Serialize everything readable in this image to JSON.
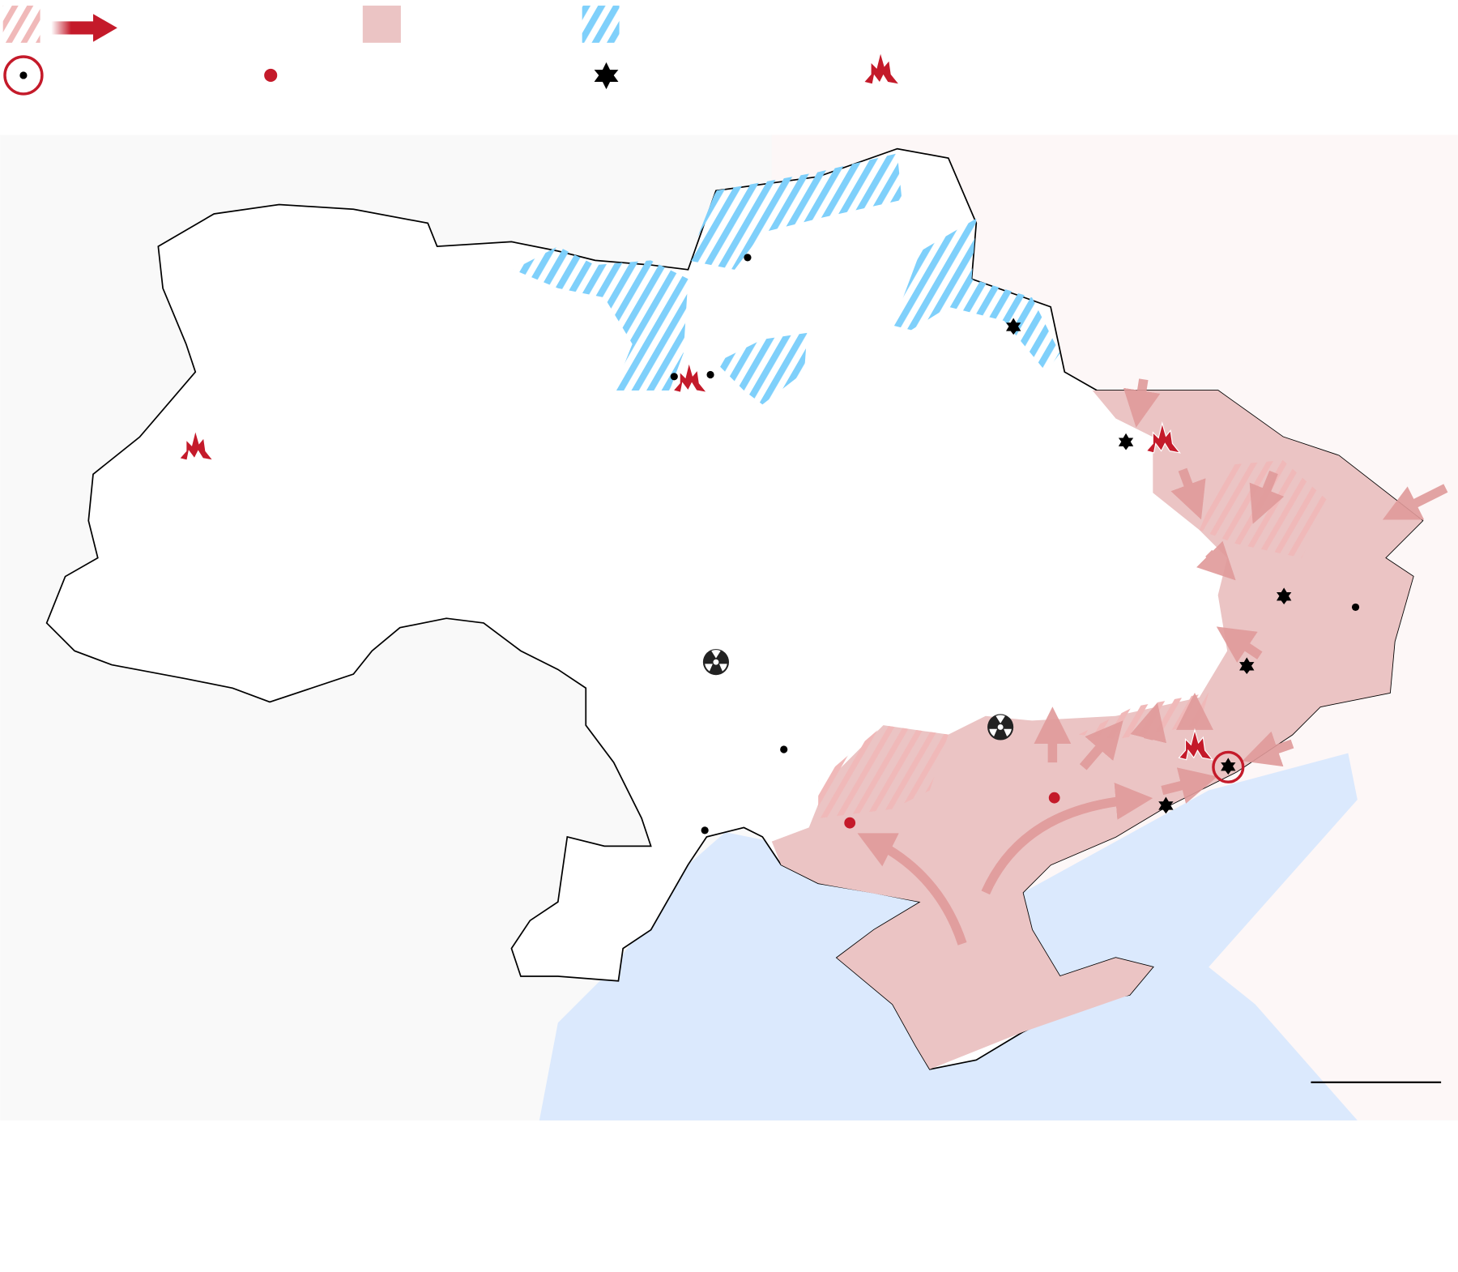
{
  "legend": {
    "row1": [
      {
        "icon": "pink-hatch-swatch",
        "meaning": ""
      },
      {
        "icon": "red-advance-arrow",
        "meaning": ""
      },
      {
        "icon": "pink-fill-swatch",
        "meaning": ""
      },
      {
        "icon": "blue-hatch-swatch",
        "meaning": ""
      }
    ],
    "row2": [
      {
        "icon": "encircled-city-icon"
      },
      {
        "icon": "red-dot-icon"
      },
      {
        "icon": "black-star-icon"
      },
      {
        "icon": "explosion-icon"
      }
    ]
  },
  "colors": {
    "occupied": "#ebc4c4",
    "hatch_pink": "#f0b9b9",
    "hatch_blue": "#7fd0fb",
    "arrow": "#e09a9a",
    "accent_red": "#c41a2a",
    "sea": "#dbe9fd",
    "russia_bg": "#fdf7f7",
    "border": "#000000"
  },
  "markers": {
    "cities": 6,
    "stars": 6,
    "explosions": 4,
    "red_dots": 2,
    "nuclear_plants": 2,
    "encircled": 1
  }
}
